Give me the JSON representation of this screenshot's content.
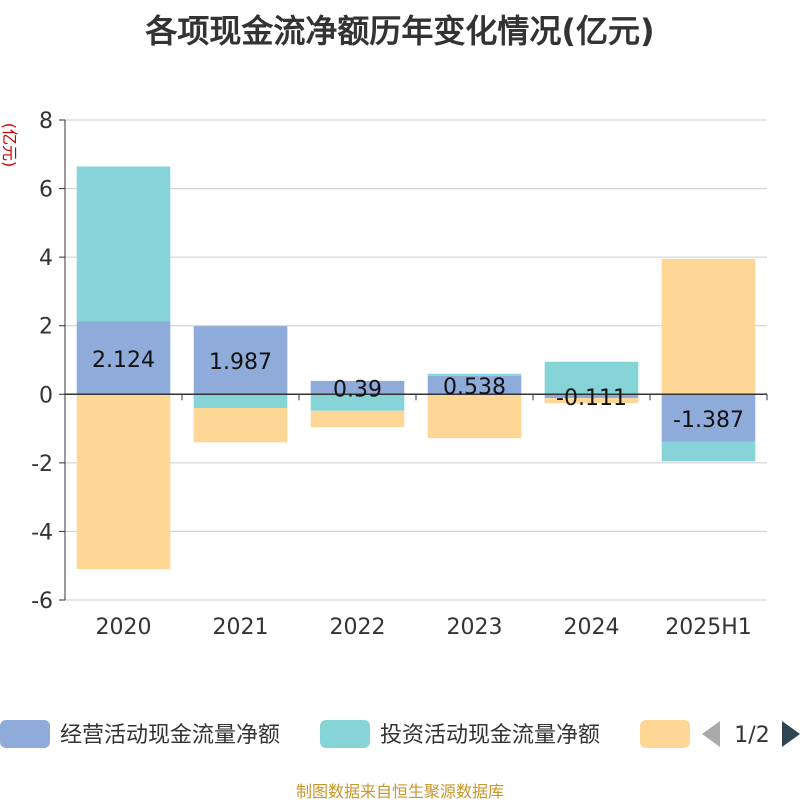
{
  "page": {
    "title": "各项现金流净额历年变化情况(亿元)",
    "source": "制图数据来自恒生聚源数据库"
  },
  "chart_data": {
    "type": "bar",
    "stacked": true,
    "title": "各项现金流净额历年变化情况(亿元)",
    "ylabel": "(亿元)",
    "ylim": [
      -6,
      8
    ],
    "yticks": [
      -6,
      -4,
      -2,
      0,
      2,
      4,
      6,
      8
    ],
    "grid": true,
    "categories": [
      "2020",
      "2021",
      "2022",
      "2023",
      "2024",
      "2025H1"
    ],
    "series": [
      {
        "name": "经营活动现金流量净额",
        "color": "#8fabd9",
        "values": [
          2.124,
          1.987,
          0.39,
          0.538,
          -0.111,
          -1.387
        ],
        "labels": [
          "2.124",
          "1.987",
          "0.39",
          "0.538",
          "-0.111",
          "-1.387"
        ]
      },
      {
        "name": "投资活动现金流量净额",
        "color": "#86d4d8",
        "values": [
          4.52,
          -0.4,
          -0.48,
          0.06,
          0.95,
          -0.57
        ],
        "labels": [
          "",
          "",
          "",
          "",
          "",
          ""
        ]
      },
      {
        "name": "",
        "color": "#fed797",
        "values": [
          -5.1,
          -1.0,
          -0.48,
          -1.28,
          -0.15,
          3.95
        ],
        "labels": [
          "",
          "",
          "",
          "",
          "",
          ""
        ]
      }
    ],
    "legend": {
      "position": "bottom",
      "page_indicator": "1/2"
    }
  }
}
